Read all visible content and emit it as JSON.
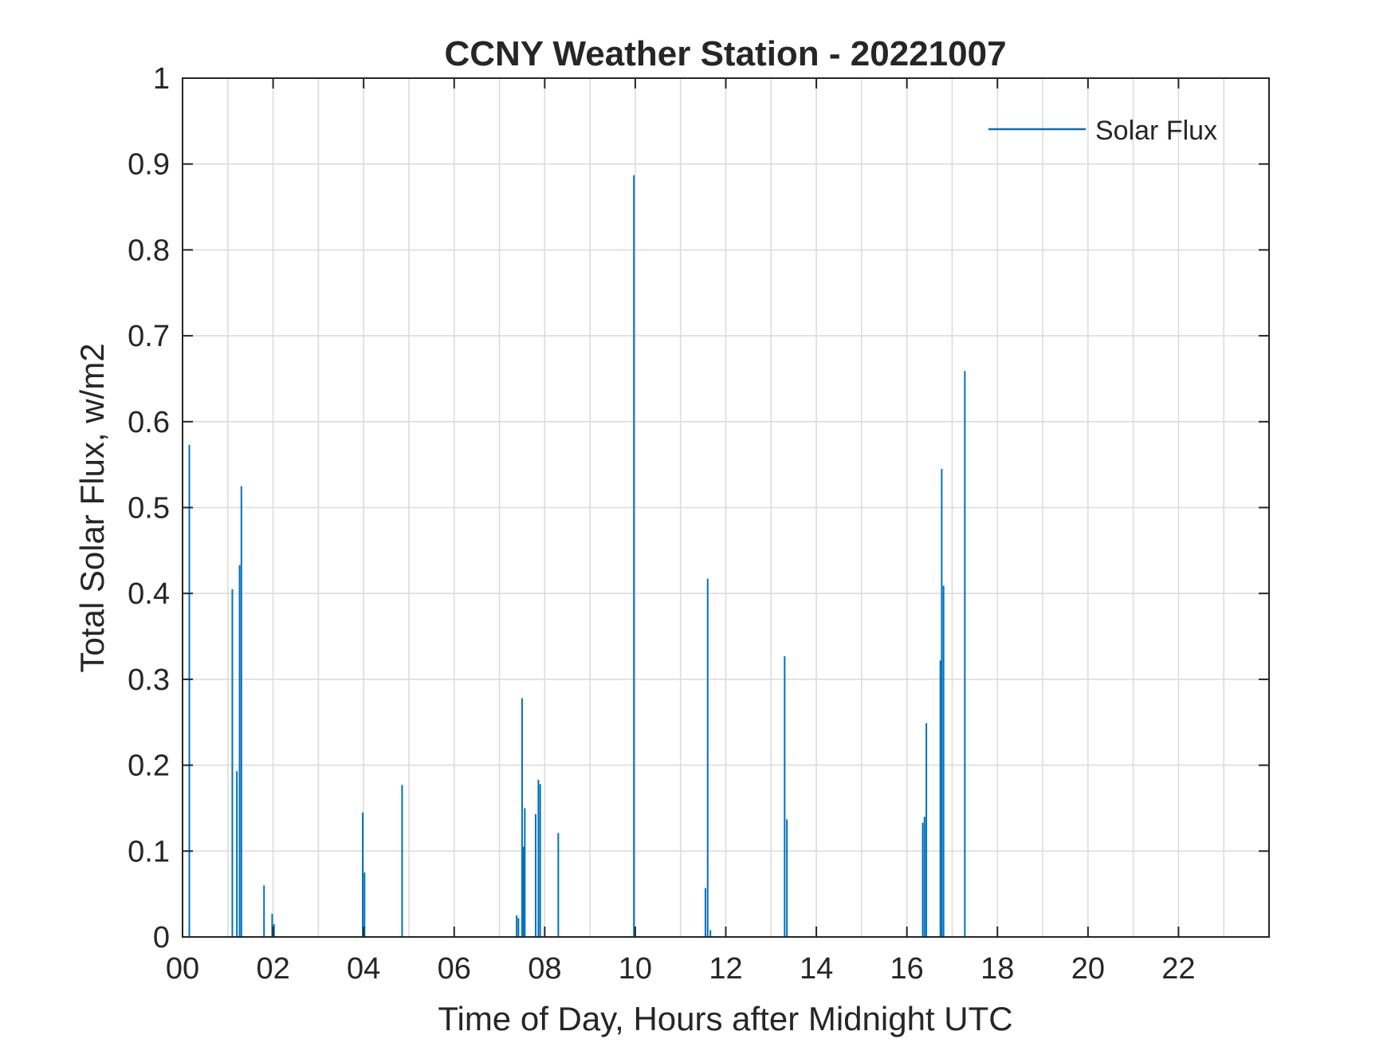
{
  "chart_data": {
    "type": "line",
    "title": "CCNY Weather Station - 20221007",
    "xlabel": "Time of Day, Hours after Midnight UTC",
    "ylabel": "Total Solar Flux, w/m2",
    "xlim": [
      0,
      24
    ],
    "ylim": [
      0,
      1
    ],
    "xticks": [
      0,
      2,
      4,
      6,
      8,
      10,
      12,
      14,
      16,
      18,
      20,
      22
    ],
    "xtick_labels": [
      "00",
      "02",
      "04",
      "06",
      "08",
      "10",
      "12",
      "14",
      "16",
      "18",
      "20",
      "22"
    ],
    "yticks": [
      0,
      0.1,
      0.2,
      0.3,
      0.4,
      0.5,
      0.6,
      0.7,
      0.8,
      0.9,
      1
    ],
    "ytick_labels": [
      "0",
      "0.1",
      "0.2",
      "0.3",
      "0.4",
      "0.5",
      "0.6",
      "0.7",
      "0.8",
      "0.9",
      "1"
    ],
    "grid": true,
    "minor_x_grid_step": 1,
    "legend_position": "top-right",
    "series": [
      {
        "name": "Solar Flux",
        "color": "#0072BD",
        "spikes": [
          {
            "x": 0.15,
            "y": 0.573
          },
          {
            "x": 1.1,
            "y": 0.405
          },
          {
            "x": 1.2,
            "y": 0.193
          },
          {
            "x": 1.26,
            "y": 0.433
          },
          {
            "x": 1.3,
            "y": 0.525
          },
          {
            "x": 1.8,
            "y": 0.06
          },
          {
            "x": 1.98,
            "y": 0.027
          },
          {
            "x": 2.02,
            "y": 0.015
          },
          {
            "x": 3.98,
            "y": 0.145
          },
          {
            "x": 4.02,
            "y": 0.075
          },
          {
            "x": 4.85,
            "y": 0.177
          },
          {
            "x": 7.38,
            "y": 0.025
          },
          {
            "x": 7.42,
            "y": 0.022
          },
          {
            "x": 7.5,
            "y": 0.278
          },
          {
            "x": 7.53,
            "y": 0.105
          },
          {
            "x": 7.56,
            "y": 0.15
          },
          {
            "x": 7.8,
            "y": 0.143
          },
          {
            "x": 7.86,
            "y": 0.183
          },
          {
            "x": 7.9,
            "y": 0.178
          },
          {
            "x": 8.3,
            "y": 0.121
          },
          {
            "x": 9.97,
            "y": 0.887
          },
          {
            "x": 11.55,
            "y": 0.057
          },
          {
            "x": 11.6,
            "y": 0.417
          },
          {
            "x": 11.66,
            "y": 0.008
          },
          {
            "x": 13.3,
            "y": 0.327
          },
          {
            "x": 13.35,
            "y": 0.137
          },
          {
            "x": 16.35,
            "y": 0.133
          },
          {
            "x": 16.39,
            "y": 0.14
          },
          {
            "x": 16.43,
            "y": 0.249
          },
          {
            "x": 16.74,
            "y": 0.322
          },
          {
            "x": 16.77,
            "y": 0.545
          },
          {
            "x": 16.81,
            "y": 0.409
          },
          {
            "x": 17.28,
            "y": 0.659
          }
        ]
      }
    ]
  }
}
